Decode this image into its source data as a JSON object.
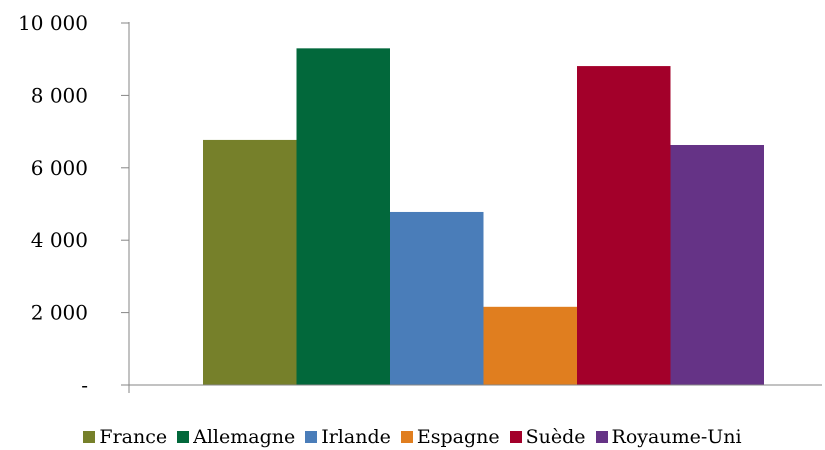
{
  "chart_data": {
    "type": "bar",
    "title": "",
    "xlabel": "",
    "ylabel": "",
    "ylim": [
      0,
      10000
    ],
    "yticks": [
      {
        "value": 0,
        "label": "-"
      },
      {
        "value": 2000,
        "label": "2 000"
      },
      {
        "value": 4000,
        "label": "4 000"
      },
      {
        "value": 6000,
        "label": "6 000"
      },
      {
        "value": 8000,
        "label": "8 000"
      },
      {
        "value": 10000,
        "label": "10 000"
      }
    ],
    "grid": false,
    "legend_position": "bottom",
    "series": [
      {
        "name": "France",
        "value": 6770,
        "color": "#76802a"
      },
      {
        "name": "Allemagne",
        "value": 9300,
        "color": "#02683b"
      },
      {
        "name": "Irlande",
        "value": 4780,
        "color": "#4a7db9"
      },
      {
        "name": "Espagne",
        "value": 2160,
        "color": "#e07e1f"
      },
      {
        "name": "Suède",
        "value": 8810,
        "color": "#a3002a"
      },
      {
        "name": "Royaume-Uni",
        "value": 6630,
        "color": "#653386"
      }
    ]
  }
}
